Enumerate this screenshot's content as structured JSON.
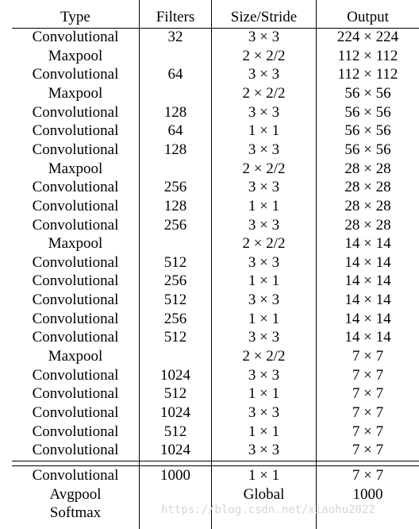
{
  "table": {
    "headers": [
      "Type",
      "Filters",
      "Size/Stride",
      "Output"
    ],
    "rows": [
      [
        "Convolutional",
        "32",
        "3 × 3",
        "224 × 224"
      ],
      [
        "Maxpool",
        "",
        "2 × 2/2",
        "112 × 112"
      ],
      [
        "Convolutional",
        "64",
        "3 × 3",
        "112 × 112"
      ],
      [
        "Maxpool",
        "",
        "2 × 2/2",
        "56 × 56"
      ],
      [
        "Convolutional",
        "128",
        "3 × 3",
        "56 × 56"
      ],
      [
        "Convolutional",
        "64",
        "1 × 1",
        "56 × 56"
      ],
      [
        "Convolutional",
        "128",
        "3 × 3",
        "56 × 56"
      ],
      [
        "Maxpool",
        "",
        "2 × 2/2",
        "28 × 28"
      ],
      [
        "Convolutional",
        "256",
        "3 × 3",
        "28 × 28"
      ],
      [
        "Convolutional",
        "128",
        "1 × 1",
        "28 × 28"
      ],
      [
        "Convolutional",
        "256",
        "3 × 3",
        "28 × 28"
      ],
      [
        "Maxpool",
        "",
        "2 × 2/2",
        "14 × 14"
      ],
      [
        "Convolutional",
        "512",
        "3 × 3",
        "14 × 14"
      ],
      [
        "Convolutional",
        "256",
        "1 × 1",
        "14 × 14"
      ],
      [
        "Convolutional",
        "512",
        "3 × 3",
        "14 × 14"
      ],
      [
        "Convolutional",
        "256",
        "1 × 1",
        "14 × 14"
      ],
      [
        "Convolutional",
        "512",
        "3 × 3",
        "14 × 14"
      ],
      [
        "Maxpool",
        "",
        "2 × 2/2",
        "7 × 7"
      ],
      [
        "Convolutional",
        "1024",
        "3 × 3",
        "7 × 7"
      ],
      [
        "Convolutional",
        "512",
        "1 × 1",
        "7 × 7"
      ],
      [
        "Convolutional",
        "1024",
        "3 × 3",
        "7 × 7"
      ],
      [
        "Convolutional",
        "512",
        "1 × 1",
        "7 × 7"
      ],
      [
        "Convolutional",
        "1024",
        "3 × 3",
        "7 × 7"
      ]
    ],
    "footer_rows": [
      [
        "Convolutional",
        "1000",
        "1 × 1",
        "7 × 7"
      ],
      [
        "Avgpool",
        "",
        "Global",
        "1000"
      ],
      [
        "Softmax",
        "",
        "",
        ""
      ]
    ]
  },
  "watermark": "https://blog.csdn.net/xiaohu2022"
}
